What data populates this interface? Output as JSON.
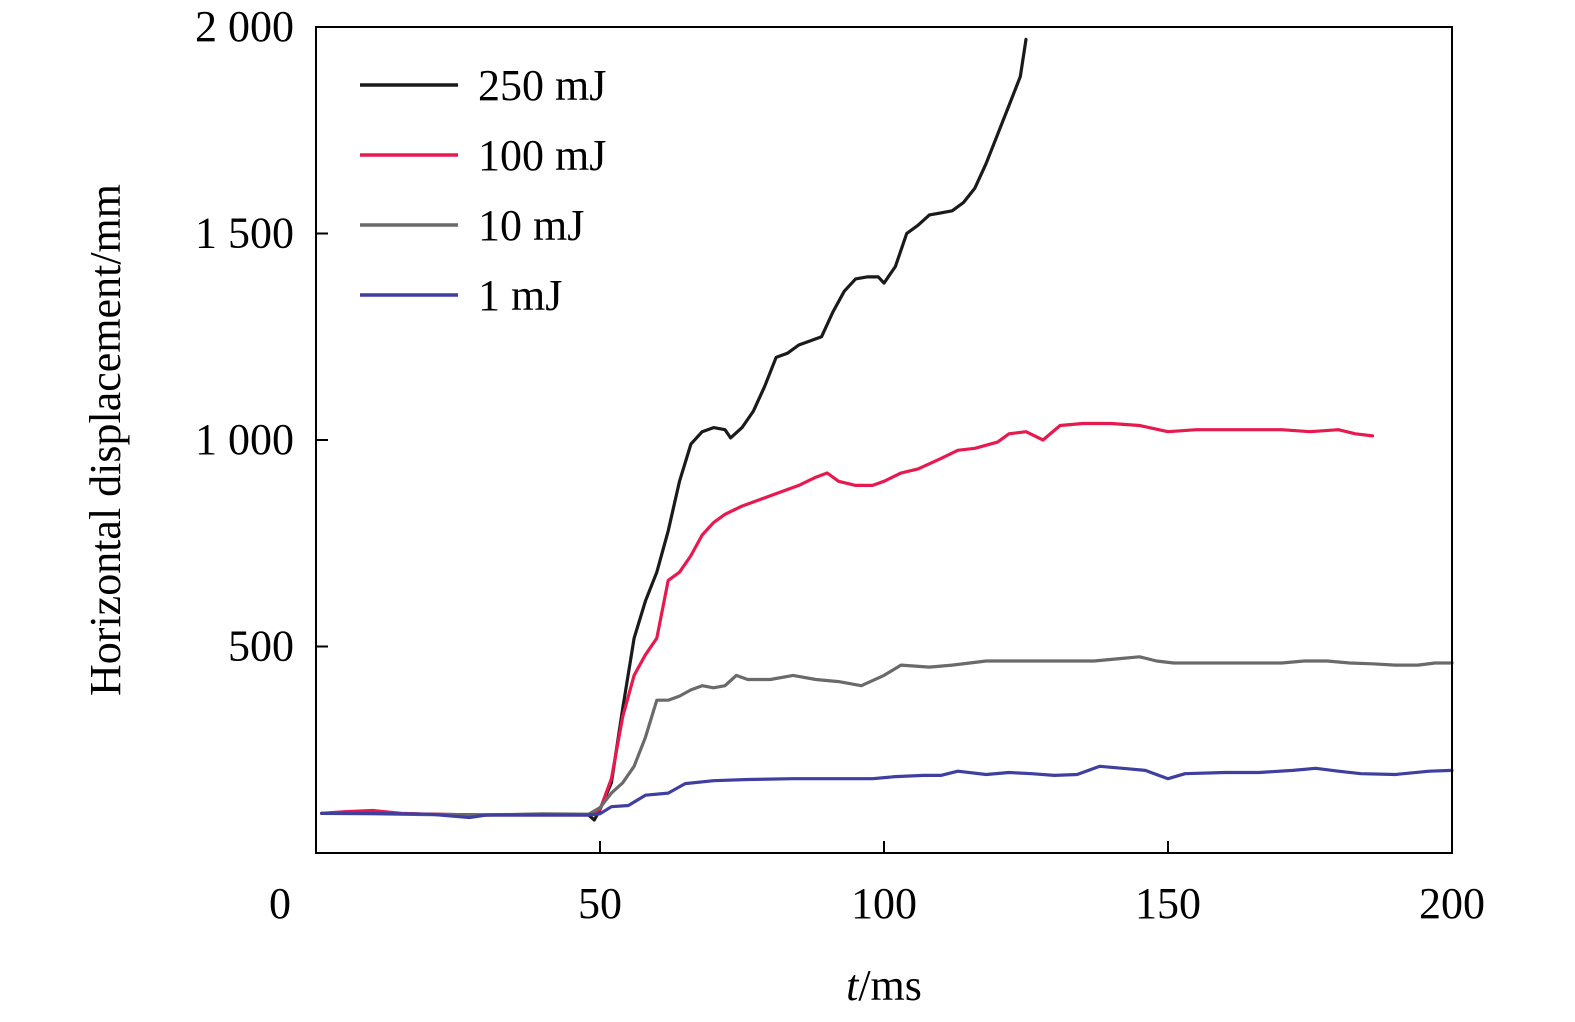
{
  "chart_data": {
    "type": "line",
    "title": "",
    "xlabel_italic": "t",
    "xlabel_rest": "/ms",
    "ylabel": "Horizontal displacement/mm",
    "xlim": [
      0,
      200
    ],
    "ylim": [
      0,
      2000
    ],
    "grid": false,
    "legend_position": "top-left",
    "x_ticks": [
      0,
      50,
      100,
      150,
      200
    ],
    "x_tick_labels": [
      "0",
      "50",
      "100",
      "150",
      "200"
    ],
    "y_ticks": [
      500,
      1000,
      1500,
      2000
    ],
    "y_tick_labels": [
      "500",
      "1 000",
      "1 500",
      "2 000"
    ],
    "series": [
      {
        "name": "250 mJ",
        "color": "#1a1a1a",
        "points": [
          [
            1,
            96
          ],
          [
            10,
            96
          ],
          [
            20,
            94
          ],
          [
            30,
            92
          ],
          [
            40,
            92
          ],
          [
            48,
            92
          ],
          [
            49,
            80
          ],
          [
            50,
            105
          ],
          [
            52,
            170
          ],
          [
            54,
            350
          ],
          [
            56,
            520
          ],
          [
            58,
            610
          ],
          [
            60,
            680
          ],
          [
            62,
            780
          ],
          [
            64,
            900
          ],
          [
            66,
            990
          ],
          [
            68,
            1020
          ],
          [
            70,
            1030
          ],
          [
            72,
            1025
          ],
          [
            73,
            1005
          ],
          [
            75,
            1030
          ],
          [
            77,
            1070
          ],
          [
            79,
            1130
          ],
          [
            81,
            1200
          ],
          [
            83,
            1210
          ],
          [
            85,
            1230
          ],
          [
            87,
            1240
          ],
          [
            89,
            1250
          ],
          [
            91,
            1310
          ],
          [
            93,
            1360
          ],
          [
            95,
            1390
          ],
          [
            97,
            1395
          ],
          [
            99,
            1395
          ],
          [
            100,
            1380
          ],
          [
            102,
            1420
          ],
          [
            104,
            1500
          ],
          [
            106,
            1520
          ],
          [
            108,
            1545
          ],
          [
            110,
            1550
          ],
          [
            112,
            1555
          ],
          [
            114,
            1575
          ],
          [
            116,
            1610
          ],
          [
            118,
            1670
          ],
          [
            120,
            1740
          ],
          [
            122,
            1810
          ],
          [
            124,
            1880
          ],
          [
            125,
            1970
          ]
        ]
      },
      {
        "name": "100 mJ",
        "color": "#e8194f",
        "points": [
          [
            1,
            96
          ],
          [
            5,
            100
          ],
          [
            10,
            103
          ],
          [
            15,
            96
          ],
          [
            20,
            94
          ],
          [
            30,
            92
          ],
          [
            40,
            94
          ],
          [
            48,
            92
          ],
          [
            50,
            105
          ],
          [
            52,
            180
          ],
          [
            54,
            330
          ],
          [
            56,
            430
          ],
          [
            58,
            480
          ],
          [
            60,
            520
          ],
          [
            62,
            660
          ],
          [
            64,
            680
          ],
          [
            66,
            720
          ],
          [
            68,
            770
          ],
          [
            70,
            800
          ],
          [
            72,
            820
          ],
          [
            75,
            840
          ],
          [
            80,
            865
          ],
          [
            85,
            890
          ],
          [
            88,
            910
          ],
          [
            90,
            920
          ],
          [
            92,
            900
          ],
          [
            95,
            890
          ],
          [
            98,
            890
          ],
          [
            100,
            900
          ],
          [
            103,
            920
          ],
          [
            106,
            930
          ],
          [
            110,
            955
          ],
          [
            113,
            975
          ],
          [
            116,
            980
          ],
          [
            120,
            995
          ],
          [
            122,
            1015
          ],
          [
            125,
            1020
          ],
          [
            128,
            1000
          ],
          [
            131,
            1035
          ],
          [
            135,
            1040
          ],
          [
            140,
            1040
          ],
          [
            145,
            1035
          ],
          [
            150,
            1020
          ],
          [
            155,
            1025
          ],
          [
            160,
            1025
          ],
          [
            165,
            1025
          ],
          [
            170,
            1025
          ],
          [
            175,
            1020
          ],
          [
            180,
            1025
          ],
          [
            183,
            1015
          ],
          [
            186,
            1010
          ]
        ]
      },
      {
        "name": "10 mJ",
        "color": "#6a6a6a",
        "points": [
          [
            1,
            96
          ],
          [
            10,
            95
          ],
          [
            20,
            93
          ],
          [
            30,
            92
          ],
          [
            40,
            95
          ],
          [
            48,
            94
          ],
          [
            50,
            110
          ],
          [
            52,
            145
          ],
          [
            54,
            170
          ],
          [
            56,
            210
          ],
          [
            58,
            280
          ],
          [
            60,
            370
          ],
          [
            62,
            370
          ],
          [
            64,
            380
          ],
          [
            66,
            395
          ],
          [
            68,
            405
          ],
          [
            70,
            400
          ],
          [
            72,
            405
          ],
          [
            74,
            430
          ],
          [
            76,
            420
          ],
          [
            80,
            420
          ],
          [
            84,
            430
          ],
          [
            88,
            420
          ],
          [
            92,
            415
          ],
          [
            96,
            405
          ],
          [
            100,
            430
          ],
          [
            103,
            455
          ],
          [
            108,
            450
          ],
          [
            112,
            455
          ],
          [
            118,
            465
          ],
          [
            125,
            465
          ],
          [
            130,
            465
          ],
          [
            137,
            465
          ],
          [
            141,
            470
          ],
          [
            145,
            475
          ],
          [
            148,
            465
          ],
          [
            151,
            460
          ],
          [
            160,
            460
          ],
          [
            166,
            460
          ],
          [
            170,
            460
          ],
          [
            174,
            465
          ],
          [
            178,
            465
          ],
          [
            182,
            460
          ],
          [
            186,
            458
          ],
          [
            190,
            455
          ],
          [
            194,
            455
          ],
          [
            197,
            460
          ],
          [
            200,
            460
          ]
        ]
      },
      {
        "name": "1 mJ",
        "color": "#3f3fa0",
        "points": [
          [
            1,
            96
          ],
          [
            10,
            96
          ],
          [
            20,
            94
          ],
          [
            27,
            86
          ],
          [
            30,
            92
          ],
          [
            40,
            92
          ],
          [
            48,
            92
          ],
          [
            50,
            95
          ],
          [
            52,
            112
          ],
          [
            55,
            115
          ],
          [
            58,
            140
          ],
          [
            62,
            145
          ],
          [
            65,
            168
          ],
          [
            70,
            175
          ],
          [
            76,
            178
          ],
          [
            84,
            180
          ],
          [
            92,
            180
          ],
          [
            98,
            180
          ],
          [
            102,
            185
          ],
          [
            107,
            188
          ],
          [
            110,
            188
          ],
          [
            113,
            198
          ],
          [
            118,
            190
          ],
          [
            122,
            195
          ],
          [
            126,
            192
          ],
          [
            130,
            188
          ],
          [
            134,
            190
          ],
          [
            138,
            210
          ],
          [
            142,
            205
          ],
          [
            146,
            200
          ],
          [
            150,
            180
          ],
          [
            153,
            192
          ],
          [
            160,
            195
          ],
          [
            166,
            195
          ],
          [
            172,
            200
          ],
          [
            176,
            205
          ],
          [
            180,
            198
          ],
          [
            184,
            192
          ],
          [
            190,
            190
          ],
          [
            196,
            198
          ],
          [
            200,
            200
          ]
        ]
      }
    ]
  }
}
